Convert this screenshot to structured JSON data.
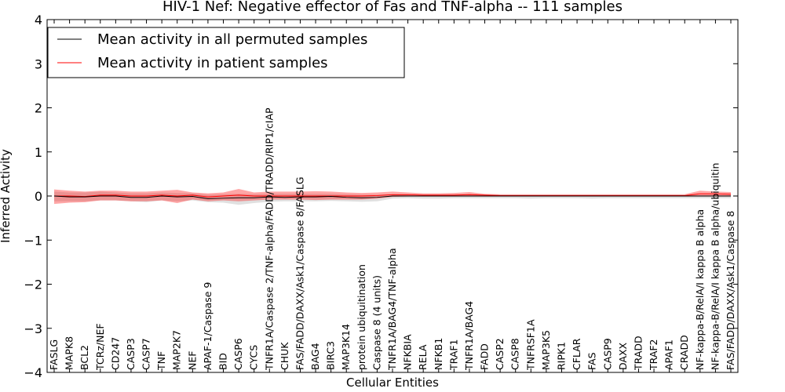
{
  "chart_data": {
    "type": "line",
    "title": "HIV-1 Nef: Negative effector of Fas and TNF-alpha -- 111 samples",
    "xlabel": "Cellular Entities",
    "ylabel": "Inferred Activity",
    "ylim": [
      -4,
      4
    ],
    "yticks": [
      -4,
      -3,
      -2,
      -1,
      0,
      1,
      2,
      3,
      4
    ],
    "grid": false,
    "legend_position": "top-left",
    "categories": [
      "FASLG",
      "MAPK8",
      "BCL2",
      "TCRz/NEF",
      "CD247",
      "CASP3",
      "CASP7",
      "TNF",
      "MAP2K7",
      "NEF",
      "APAF-1/Caspase 9",
      "BID",
      "CASP6",
      "CYCS",
      "TNFR1A/Caspase 2/TNF-alpha/FADD/TRADD/RIP1/cIAP",
      "CHUK",
      "FAS/FADD/DAXX/Ask1/Caspase 8/FASLG",
      "BAG4",
      "BIRC3",
      "MAP3K14",
      "protein ubiquitination",
      "Caspase 8 (4 units)",
      "TNFR1A/BAG4/TNF-alpha",
      "NFKBIA",
      "RELA",
      "NFKB1",
      "TRAF1",
      "TNFR1A/BAG4",
      "FADD",
      "CASP2",
      "CASP8",
      "TNFRSF1A",
      "MAP3K5",
      "RIPK1",
      "CFLAR",
      "FAS",
      "CASP9",
      "DAXX",
      "TRADD",
      "TRAF2",
      "APAF1",
      "CRADD",
      "NF-kappa-B/RelA/I kappa B alpha",
      "NF-kappa-B/RelA/I kappa B alpha/ubiquitin",
      "FAS/FADD/DAXX/Ask1/Caspase 8"
    ],
    "series": [
      {
        "name": "Mean activity in all permuted samples",
        "color": "#000000",
        "values": [
          0.0,
          -0.02,
          -0.02,
          0.0,
          0.0,
          -0.03,
          -0.03,
          0.0,
          -0.02,
          -0.01,
          -0.06,
          -0.05,
          -0.04,
          -0.04,
          -0.02,
          -0.03,
          -0.02,
          -0.02,
          -0.01,
          -0.03,
          -0.04,
          -0.03,
          0.0,
          0.0,
          0.0,
          0.0,
          0.0,
          0.0,
          0.0,
          0.0,
          0.0,
          0.0,
          0.0,
          0.0,
          0.0,
          0.0,
          0.0,
          0.0,
          0.0,
          0.0,
          0.0,
          0.0,
          0.0,
          0.0,
          0.0
        ],
        "band_upper": [
          0.1,
          0.08,
          0.08,
          0.1,
          0.08,
          0.06,
          0.06,
          0.08,
          0.07,
          0.06,
          0.03,
          0.04,
          0.05,
          0.04,
          0.05,
          0.05,
          0.05,
          0.05,
          0.05,
          0.04,
          0.03,
          0.03,
          0.04,
          0.03,
          0.02,
          0.02,
          0.02,
          0.02,
          0.02,
          0.02,
          0.02,
          0.02,
          0.02,
          0.02,
          0.02,
          0.02,
          0.02,
          0.02,
          0.02,
          0.02,
          0.02,
          0.02,
          0.02,
          0.02,
          0.02
        ],
        "band_lower": [
          -0.12,
          -0.12,
          -0.12,
          -0.1,
          -0.1,
          -0.12,
          -0.14,
          -0.1,
          -0.12,
          -0.1,
          -0.14,
          -0.15,
          -0.2,
          -0.16,
          -0.13,
          -0.12,
          -0.12,
          -0.12,
          -0.11,
          -0.12,
          -0.13,
          -0.12,
          -0.06,
          -0.05,
          -0.06,
          -0.06,
          -0.05,
          -0.05,
          -0.05,
          -0.05,
          -0.05,
          -0.06,
          -0.05,
          -0.05,
          -0.05,
          -0.06,
          -0.05,
          -0.05,
          -0.05,
          -0.05,
          -0.05,
          -0.05,
          -0.05,
          -0.05,
          -0.05
        ]
      },
      {
        "name": "Mean activity in patient samples",
        "color": "#ff0000",
        "values": [
          0.0,
          0.0,
          -0.01,
          0.02,
          0.02,
          0.0,
          0.0,
          0.02,
          0.0,
          0.02,
          -0.02,
          0.0,
          0.02,
          0.0,
          0.0,
          0.0,
          0.0,
          0.0,
          0.0,
          0.0,
          0.0,
          0.01,
          0.03,
          0.03,
          0.02,
          0.02,
          0.02,
          0.03,
          0.02,
          0.01,
          0.01,
          0.01,
          0.01,
          0.01,
          0.01,
          0.01,
          0.01,
          0.01,
          0.01,
          0.01,
          0.01,
          0.01,
          0.05,
          0.05,
          0.04
        ],
        "band_upper": [
          0.15,
          0.12,
          0.1,
          0.12,
          0.12,
          0.1,
          0.1,
          0.12,
          0.14,
          0.08,
          0.06,
          0.08,
          0.16,
          0.08,
          0.1,
          0.1,
          0.1,
          0.11,
          0.1,
          0.08,
          0.07,
          0.08,
          0.1,
          0.08,
          0.06,
          0.06,
          0.07,
          0.09,
          0.05,
          0.04,
          0.04,
          0.04,
          0.04,
          0.04,
          0.04,
          0.04,
          0.04,
          0.04,
          0.04,
          0.04,
          0.04,
          0.04,
          0.12,
          0.1,
          0.09
        ],
        "band_lower": [
          -0.18,
          -0.15,
          -0.14,
          -0.1,
          -0.1,
          -0.12,
          -0.12,
          -0.1,
          -0.16,
          -0.08,
          -0.12,
          -0.1,
          -0.12,
          -0.1,
          -0.08,
          -0.08,
          -0.08,
          -0.09,
          -0.08,
          -0.08,
          -0.08,
          -0.06,
          -0.02,
          -0.01,
          -0.01,
          -0.01,
          -0.01,
          -0.01,
          -0.01,
          -0.01,
          -0.01,
          -0.01,
          -0.01,
          -0.01,
          -0.01,
          -0.01,
          -0.01,
          -0.01,
          -0.01,
          -0.01,
          -0.01,
          -0.01,
          -0.01,
          -0.01,
          -0.01
        ]
      }
    ]
  }
}
